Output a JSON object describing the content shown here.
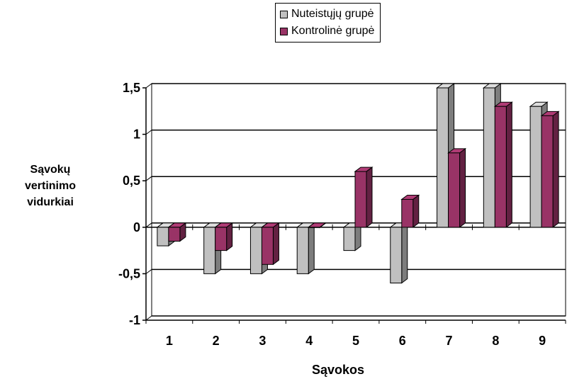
{
  "chart_data": {
    "type": "bar",
    "categories": [
      "1",
      "2",
      "3",
      "4",
      "5",
      "6",
      "7",
      "8",
      "9"
    ],
    "series": [
      {
        "name": "Nuteistųjų grupė",
        "values": [
          -0.2,
          -0.5,
          -0.5,
          -0.5,
          -0.25,
          -0.6,
          1.5,
          1.5,
          1.3
        ],
        "color": "#c0c0c0"
      },
      {
        "name": "Kontrolinė grupė",
        "values": [
          -0.15,
          -0.25,
          -0.4,
          0.0,
          0.6,
          0.3,
          0.8,
          1.3,
          1.2
        ],
        "color": "#993366"
      }
    ],
    "yticks": [
      "1,5",
      "1",
      "0,5",
      "0",
      "-0,5",
      "-1"
    ],
    "ytick_values": [
      1.5,
      1,
      0.5,
      0,
      -0.5,
      -1
    ],
    "ylim": [
      -1,
      1.5
    ],
    "ylabel": "Sąvokų vertinimo vidurkiai",
    "xlabel": "Sąvokos",
    "grid": true,
    "legend_position": "top-center"
  }
}
